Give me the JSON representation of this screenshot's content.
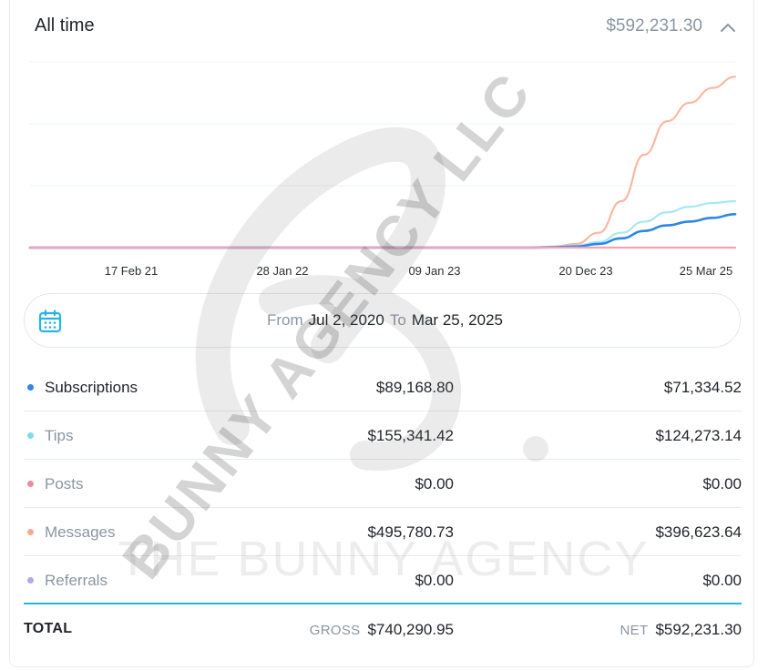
{
  "header": {
    "title": "All time",
    "total": "$592,231.30",
    "collapse_icon": "chevron-up-icon"
  },
  "chart_data": {
    "type": "line",
    "x_tick_labels": [
      "17 Feb 21",
      "28 Jan 22",
      "09 Jan 23",
      "20 Dec 23",
      "25 Mar 25"
    ],
    "grid": true,
    "legend": "none",
    "series": [
      {
        "color": "#f9b8a3",
        "values": [
          0,
          0,
          0,
          0,
          0,
          0,
          0,
          0,
          0,
          0,
          0,
          0,
          0,
          0,
          0,
          0,
          0,
          0,
          0,
          0,
          0,
          0,
          0,
          0.005,
          0.02,
          0.08,
          0.25,
          0.5,
          0.68,
          0.78,
          0.86,
          0.92
        ]
      },
      {
        "color": "#a6e8f3",
        "values": [
          0,
          0,
          0,
          0,
          0,
          0,
          0,
          0,
          0,
          0,
          0,
          0,
          0,
          0,
          0,
          0,
          0,
          0,
          0,
          0,
          0,
          0,
          0,
          0.003,
          0.01,
          0.03,
          0.08,
          0.14,
          0.19,
          0.22,
          0.24,
          0.25
        ]
      },
      {
        "color": "#2f86e3",
        "values": [
          0,
          0,
          0,
          0,
          0,
          0,
          0,
          0,
          0,
          0,
          0,
          0,
          0,
          0,
          0,
          0,
          0,
          0,
          0,
          0,
          0,
          0,
          0,
          0.002,
          0.006,
          0.02,
          0.05,
          0.09,
          0.12,
          0.14,
          0.16,
          0.18
        ]
      },
      {
        "color": "#f0a4b8",
        "values": [
          0,
          0,
          0,
          0,
          0,
          0,
          0,
          0,
          0,
          0,
          0,
          0,
          0,
          0,
          0,
          0,
          0,
          0,
          0,
          0,
          0,
          0,
          0,
          0,
          0,
          0,
          0,
          0,
          0,
          0,
          0,
          0
        ]
      }
    ]
  },
  "date_range": {
    "from_label": "From",
    "from_value": "Jul 2, 2020",
    "to_label": "To",
    "to_value": "Mar 25, 2025",
    "icon": "calendar-icon"
  },
  "rows": [
    {
      "label": "Subscriptions",
      "dot_color": "#2f86e3",
      "gross": "$89,168.80",
      "net": "$71,334.52",
      "muted": false
    },
    {
      "label": "Tips",
      "dot_color": "#7fd9ee",
      "gross": "$155,341.42",
      "net": "$124,273.14",
      "muted": true
    },
    {
      "label": "Posts",
      "dot_color": "#f08aa3",
      "gross": "$0.00",
      "net": "$0.00",
      "muted": true
    },
    {
      "label": "Messages",
      "dot_color": "#f7a98f",
      "gross": "$495,780.73",
      "net": "$396,623.64",
      "muted": true
    },
    {
      "label": "Referrals",
      "dot_color": "#b7a6f0",
      "gross": "$0.00",
      "net": "$0.00",
      "muted": true
    }
  ],
  "totals": {
    "label": "TOTAL",
    "gross_label": "GROSS",
    "gross_value": "$740,290.95",
    "net_label": "NET",
    "net_value": "$592,231.30"
  },
  "watermark": {
    "diagonal": "BUNNY AGENCY LLC",
    "horizontal": "THE BUNNY AGENCY"
  }
}
